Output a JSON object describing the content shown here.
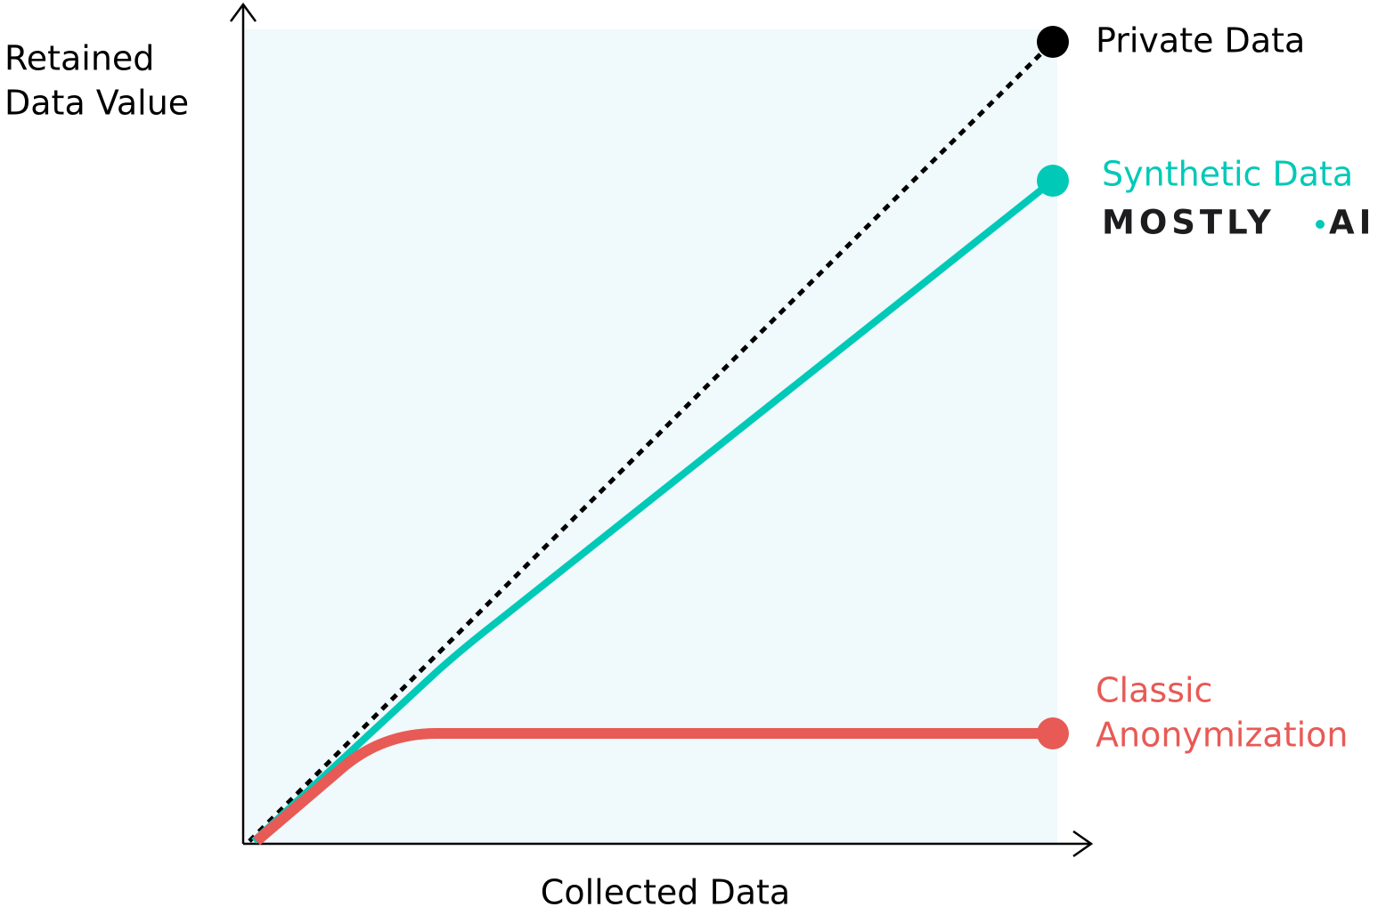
{
  "y_axis_label": [
    "Retained",
    "Data Value"
  ],
  "x_axis_label": "Collected Data",
  "series": [
    {
      "label": [
        "Private Data"
      ]
    },
    {
      "label": [
        "Synthetic Data"
      ],
      "logo": [
        "MOSTLY",
        "AI"
      ]
    },
    {
      "label": [
        "Classic",
        "Anonymization"
      ]
    }
  ]
}
